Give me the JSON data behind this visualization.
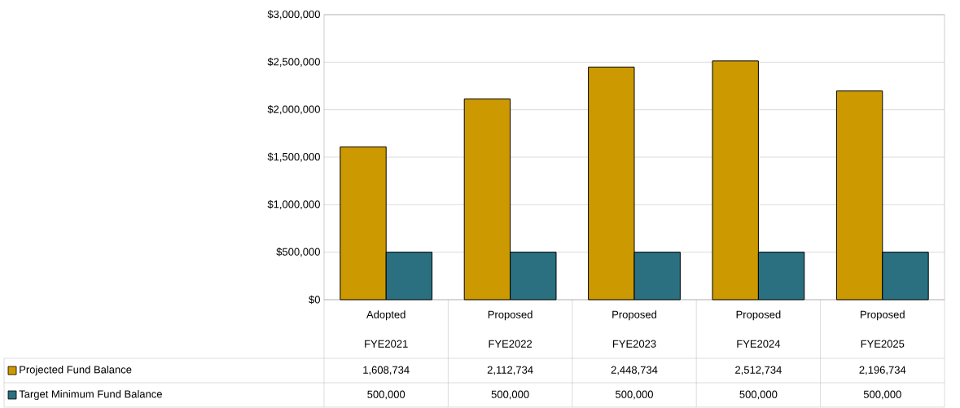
{
  "chart_data": {
    "type": "bar",
    "categories": [
      "Adopted FYE2021",
      "Proposed FYE2022",
      "Proposed FYE2023",
      "Proposed FYE2024",
      "Proposed FYE2025"
    ],
    "series": [
      {
        "name": "Projected Fund Balance",
        "color": "#cc9900",
        "values": [
          1608734,
          2112734,
          2448734,
          2512734,
          2196734
        ],
        "value_labels": [
          "1,608,734",
          "2,112,734",
          "2,448,734",
          "2,512,734",
          "2,196,734"
        ]
      },
      {
        "name": "Target Minimum Fund Balance",
        "color": "#2a7080",
        "values": [
          500000,
          500000,
          500000,
          500000,
          500000
        ],
        "value_labels": [
          "500,000",
          "500,000",
          "500,000",
          "500,000",
          "500,000"
        ]
      }
    ],
    "ylim": [
      0,
      3000000
    ],
    "yticks": [
      {
        "value": 0,
        "label": "$0"
      },
      {
        "value": 500000,
        "label": "$500,000"
      },
      {
        "value": 1000000,
        "label": "$1,000,000"
      },
      {
        "value": 1500000,
        "label": "$1,500,000"
      },
      {
        "value": 2000000,
        "label": "$2,000,000"
      },
      {
        "value": 2500000,
        "label": "$2,500,000"
      },
      {
        "value": 3000000,
        "label": "$3,000,000"
      }
    ],
    "grid": "y",
    "legend": "bottom left"
  }
}
